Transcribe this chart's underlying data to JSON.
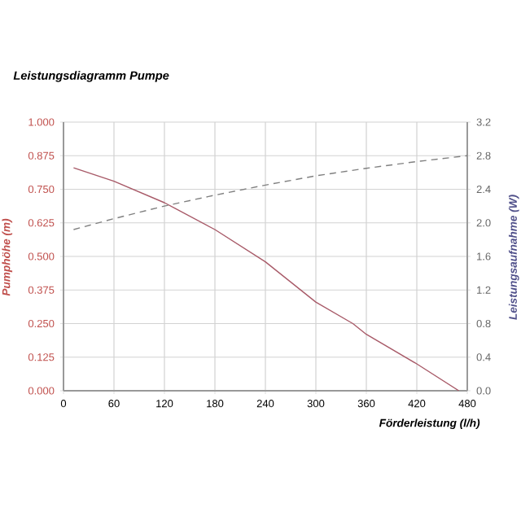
{
  "chart_data": {
    "type": "line",
    "title": "Leistungsdiagramm Pumpe",
    "xlabel": "Förderleistung (l/h)",
    "ylabel": "Pumphöhe (m)",
    "y2label": "Leistungsaufnahme (W)",
    "series": [
      {
        "color": "#a85a68",
        "line_style": "solid",
        "x": [
          12,
          60,
          120,
          180,
          240,
          300,
          344,
          360,
          420,
          470
        ],
        "values": [
          0.83,
          0.78,
          0.7,
          0.6,
          0.48,
          0.33,
          0.25,
          0.21,
          0.1,
          0.0
        ]
      },
      {
        "color": "#808080",
        "line_style": "dashed",
        "axis": "y2",
        "x": [
          12,
          60,
          120,
          180,
          240,
          300,
          360,
          420,
          480
        ],
        "values": [
          1.92,
          2.05,
          2.2,
          2.33,
          2.45,
          2.56,
          2.65,
          2.73,
          2.8
        ]
      }
    ],
    "xlim": [
      0,
      480
    ],
    "xticks": [
      0,
      60,
      120,
      180,
      240,
      300,
      360,
      420,
      480
    ],
    "ylim": [
      0,
      1
    ],
    "yticks": [
      {
        "value": 0,
        "label": "0.000"
      },
      {
        "value": 0.125,
        "label": "0.125"
      },
      {
        "value": 0.25,
        "label": "0.250"
      },
      {
        "value": 0.375,
        "label": "0.375"
      },
      {
        "value": 0.5,
        "label": "0.500"
      },
      {
        "value": 0.625,
        "label": "0.625"
      },
      {
        "value": 0.75,
        "label": "0.750"
      },
      {
        "value": 0.875,
        "label": "0.875"
      },
      {
        "value": 1,
        "label": "1.000"
      }
    ],
    "y2lim": [
      0,
      3.2
    ],
    "y2ticks": [
      {
        "value": 0,
        "label": "0.0"
      },
      {
        "value": 0.4,
        "label": "0.4"
      },
      {
        "value": 0.8,
        "label": "0.8"
      },
      {
        "value": 1.2,
        "label": "1.2"
      },
      {
        "value": 1.6,
        "label": "1.6"
      },
      {
        "value": 2.0,
        "label": "2.0"
      },
      {
        "value": 2.4,
        "label": "2.4"
      },
      {
        "value": 2.8,
        "label": "2.8"
      },
      {
        "value": 3.2,
        "label": "3.2"
      }
    ],
    "grid": true,
    "marker": "none"
  }
}
